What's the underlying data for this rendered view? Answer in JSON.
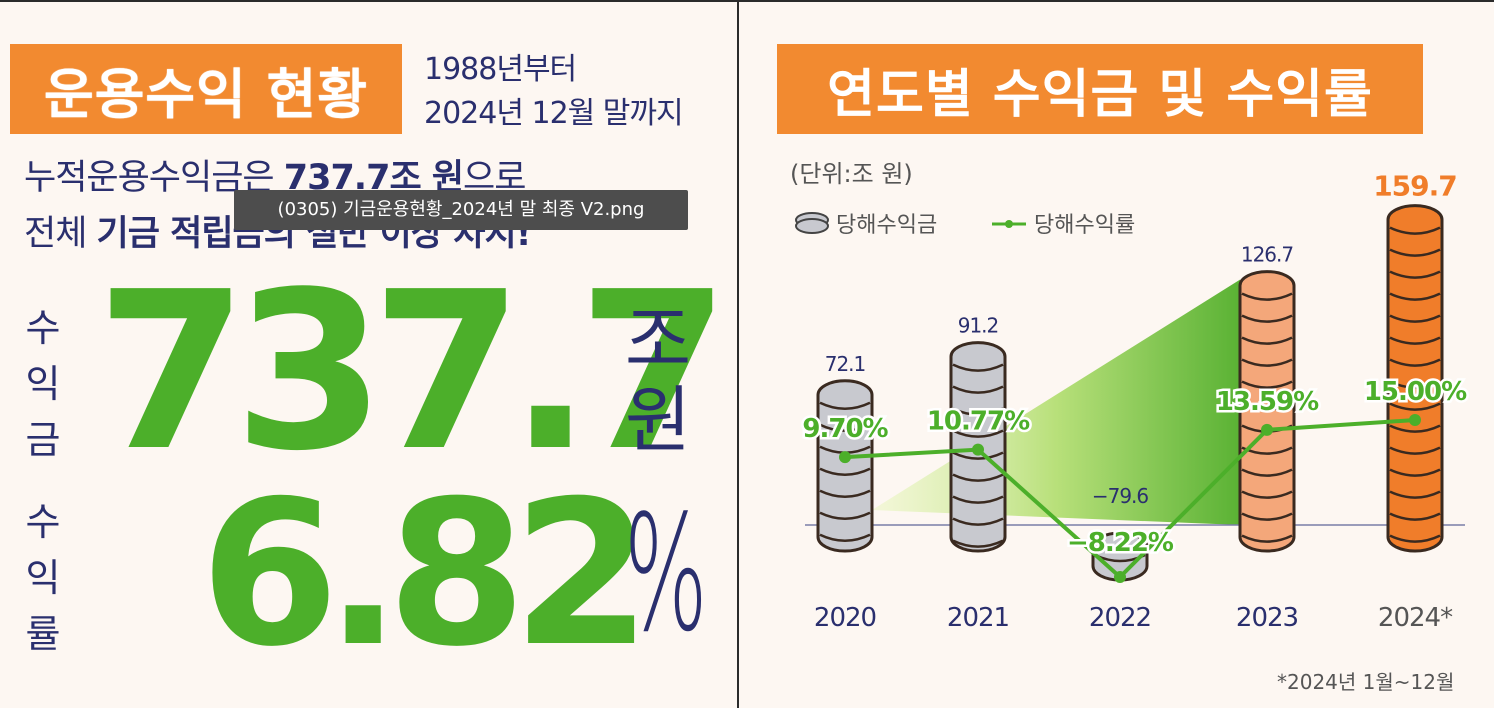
{
  "left": {
    "title": "운용수익 현황",
    "period_line1": "1988년부터",
    "period_line2": "2024년 12월 말까지",
    "desc_line1_pre": "누적운용수익금은 ",
    "desc_line1_bold": "737.7조 원",
    "desc_line1_post": "으로",
    "desc_line2_pre": "전체 ",
    "desc_line2_bold": "기금 적립금의 절반 이상 차지!",
    "income_label": [
      "수",
      "익",
      "금"
    ],
    "income_value": "737.7",
    "income_unit": [
      "조",
      "원"
    ],
    "rate_label": [
      "수",
      "익",
      "률"
    ],
    "rate_value": "6.82",
    "rate_unit": "%"
  },
  "tooltip": "(0305) 기금운용현황_2024년 말 최종 V2.png",
  "right": {
    "title": "연도별 수익금 및 수익률",
    "footnote": "*2024년 1월~12월"
  },
  "colors": {
    "orange": "#f28a30",
    "green": "#4caf2a",
    "navy": "#2a2f6e",
    "coin_gray": "#c8c9cf",
    "coin_orange": "#f4a77a",
    "coin_orange_dark": "#f07d2a"
  },
  "chart_data": {
    "type": "bar",
    "unit_label": "(단위:조 원)",
    "categories": [
      "2020",
      "2021",
      "2022",
      "2023",
      "2024*"
    ],
    "series": [
      {
        "name": "당해수익금",
        "values": [
          72.1,
          91.2,
          -79.6,
          126.7,
          159.7
        ],
        "labels": [
          "72.1",
          "91.2",
          "−79.6",
          "126.7",
          "159.7"
        ]
      },
      {
        "name": "당해수익률",
        "values": [
          9.7,
          10.77,
          -8.22,
          13.59,
          15.0
        ],
        "labels": [
          "9.70%",
          "10.77%",
          "−8.22%",
          "13.59%",
          "15.00%"
        ]
      }
    ],
    "legend_position": "top-left"
  }
}
